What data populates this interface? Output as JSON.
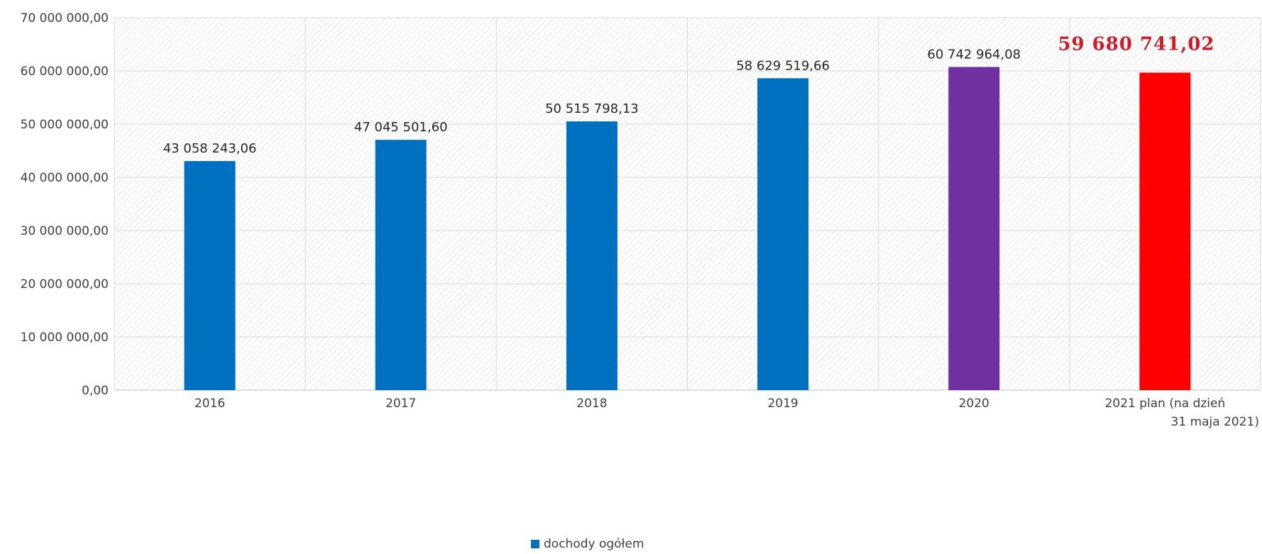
{
  "chart_data": {
    "type": "bar",
    "categories": [
      "2016",
      "2017",
      "2018",
      "2019",
      "2020",
      "2021 plan (na dzień 31 maja 2021)"
    ],
    "category_labels": [
      [
        "2016"
      ],
      [
        "2017"
      ],
      [
        "2018"
      ],
      [
        "2019"
      ],
      [
        "2020"
      ],
      [
        "2021 plan (na dzień",
        "31 maja 2021)"
      ]
    ],
    "series": [
      {
        "name": "dochody ogółem",
        "values": [
          43058243.06,
          47045501.6,
          50515798.13,
          58629519.66,
          60742964.08,
          59680741.02
        ],
        "value_labels": [
          "43 058 243,06",
          "47 045 501,60",
          "50 515 798,13",
          "58 629 519,66",
          "60 742 964,08",
          "59 680 741,02"
        ],
        "bar_colors": [
          "#0070c0",
          "#0070c0",
          "#0070c0",
          "#0070c0",
          "#7030a0",
          "#ff0000"
        ],
        "color": "#0070c0"
      }
    ],
    "highlight_index": 5,
    "highlight_label_color": "#d01c24",
    "ylim": [
      0,
      70000000
    ],
    "yticks": [
      0,
      10000000,
      20000000,
      30000000,
      40000000,
      50000000,
      60000000,
      70000000
    ],
    "ytick_labels": [
      "0,00",
      "10 000 000,00",
      "20 000 000,00",
      "30 000 000,00",
      "40 000 000,00",
      "50 000 000,00",
      "60 000 000,00",
      "70 000 000,00"
    ],
    "grid": true,
    "legend": "bottom-center",
    "title": "",
    "xlabel": "",
    "ylabel": ""
  }
}
